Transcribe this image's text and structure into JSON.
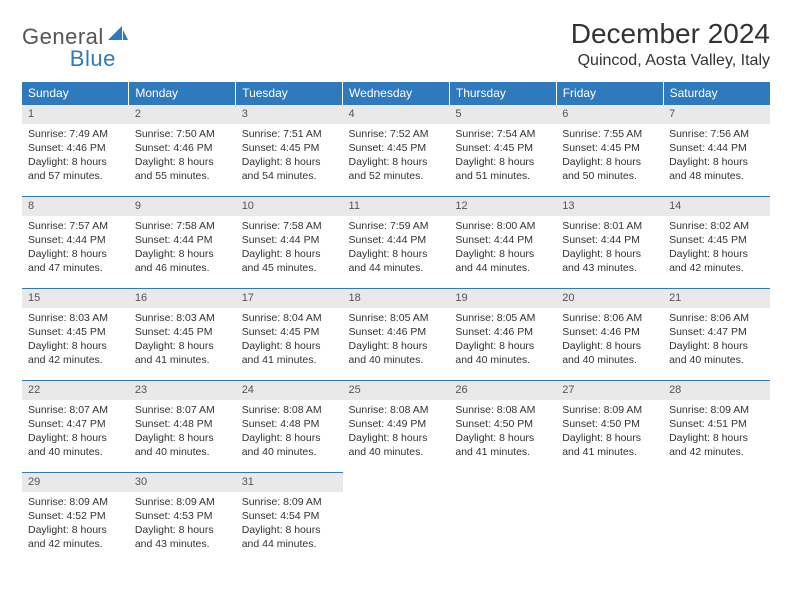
{
  "logo": {
    "general": "General",
    "blue": "Blue",
    "accent_color": "#2f79bd"
  },
  "title": "December 2024",
  "location": "Quincod, Aosta Valley, Italy",
  "day_headers": [
    "Sunday",
    "Monday",
    "Tuesday",
    "Wednesday",
    "Thursday",
    "Friday",
    "Saturday"
  ],
  "colors": {
    "header_bg": "#2f79bd",
    "header_text": "#ffffff",
    "daynum_bg": "#e9e9e9",
    "row_border": "#2f79bd",
    "body_text": "#333333"
  },
  "days": [
    {
      "n": "1",
      "sunrise": "Sunrise: 7:49 AM",
      "sunset": "Sunset: 4:46 PM",
      "daylight": "Daylight: 8 hours and 57 minutes."
    },
    {
      "n": "2",
      "sunrise": "Sunrise: 7:50 AM",
      "sunset": "Sunset: 4:46 PM",
      "daylight": "Daylight: 8 hours and 55 minutes."
    },
    {
      "n": "3",
      "sunrise": "Sunrise: 7:51 AM",
      "sunset": "Sunset: 4:45 PM",
      "daylight": "Daylight: 8 hours and 54 minutes."
    },
    {
      "n": "4",
      "sunrise": "Sunrise: 7:52 AM",
      "sunset": "Sunset: 4:45 PM",
      "daylight": "Daylight: 8 hours and 52 minutes."
    },
    {
      "n": "5",
      "sunrise": "Sunrise: 7:54 AM",
      "sunset": "Sunset: 4:45 PM",
      "daylight": "Daylight: 8 hours and 51 minutes."
    },
    {
      "n": "6",
      "sunrise": "Sunrise: 7:55 AM",
      "sunset": "Sunset: 4:45 PM",
      "daylight": "Daylight: 8 hours and 50 minutes."
    },
    {
      "n": "7",
      "sunrise": "Sunrise: 7:56 AM",
      "sunset": "Sunset: 4:44 PM",
      "daylight": "Daylight: 8 hours and 48 minutes."
    },
    {
      "n": "8",
      "sunrise": "Sunrise: 7:57 AM",
      "sunset": "Sunset: 4:44 PM",
      "daylight": "Daylight: 8 hours and 47 minutes."
    },
    {
      "n": "9",
      "sunrise": "Sunrise: 7:58 AM",
      "sunset": "Sunset: 4:44 PM",
      "daylight": "Daylight: 8 hours and 46 minutes."
    },
    {
      "n": "10",
      "sunrise": "Sunrise: 7:58 AM",
      "sunset": "Sunset: 4:44 PM",
      "daylight": "Daylight: 8 hours and 45 minutes."
    },
    {
      "n": "11",
      "sunrise": "Sunrise: 7:59 AM",
      "sunset": "Sunset: 4:44 PM",
      "daylight": "Daylight: 8 hours and 44 minutes."
    },
    {
      "n": "12",
      "sunrise": "Sunrise: 8:00 AM",
      "sunset": "Sunset: 4:44 PM",
      "daylight": "Daylight: 8 hours and 44 minutes."
    },
    {
      "n": "13",
      "sunrise": "Sunrise: 8:01 AM",
      "sunset": "Sunset: 4:44 PM",
      "daylight": "Daylight: 8 hours and 43 minutes."
    },
    {
      "n": "14",
      "sunrise": "Sunrise: 8:02 AM",
      "sunset": "Sunset: 4:45 PM",
      "daylight": "Daylight: 8 hours and 42 minutes."
    },
    {
      "n": "15",
      "sunrise": "Sunrise: 8:03 AM",
      "sunset": "Sunset: 4:45 PM",
      "daylight": "Daylight: 8 hours and 42 minutes."
    },
    {
      "n": "16",
      "sunrise": "Sunrise: 8:03 AM",
      "sunset": "Sunset: 4:45 PM",
      "daylight": "Daylight: 8 hours and 41 minutes."
    },
    {
      "n": "17",
      "sunrise": "Sunrise: 8:04 AM",
      "sunset": "Sunset: 4:45 PM",
      "daylight": "Daylight: 8 hours and 41 minutes."
    },
    {
      "n": "18",
      "sunrise": "Sunrise: 8:05 AM",
      "sunset": "Sunset: 4:46 PM",
      "daylight": "Daylight: 8 hours and 40 minutes."
    },
    {
      "n": "19",
      "sunrise": "Sunrise: 8:05 AM",
      "sunset": "Sunset: 4:46 PM",
      "daylight": "Daylight: 8 hours and 40 minutes."
    },
    {
      "n": "20",
      "sunrise": "Sunrise: 8:06 AM",
      "sunset": "Sunset: 4:46 PM",
      "daylight": "Daylight: 8 hours and 40 minutes."
    },
    {
      "n": "21",
      "sunrise": "Sunrise: 8:06 AM",
      "sunset": "Sunset: 4:47 PM",
      "daylight": "Daylight: 8 hours and 40 minutes."
    },
    {
      "n": "22",
      "sunrise": "Sunrise: 8:07 AM",
      "sunset": "Sunset: 4:47 PM",
      "daylight": "Daylight: 8 hours and 40 minutes."
    },
    {
      "n": "23",
      "sunrise": "Sunrise: 8:07 AM",
      "sunset": "Sunset: 4:48 PM",
      "daylight": "Daylight: 8 hours and 40 minutes."
    },
    {
      "n": "24",
      "sunrise": "Sunrise: 8:08 AM",
      "sunset": "Sunset: 4:48 PM",
      "daylight": "Daylight: 8 hours and 40 minutes."
    },
    {
      "n": "25",
      "sunrise": "Sunrise: 8:08 AM",
      "sunset": "Sunset: 4:49 PM",
      "daylight": "Daylight: 8 hours and 40 minutes."
    },
    {
      "n": "26",
      "sunrise": "Sunrise: 8:08 AM",
      "sunset": "Sunset: 4:50 PM",
      "daylight": "Daylight: 8 hours and 41 minutes."
    },
    {
      "n": "27",
      "sunrise": "Sunrise: 8:09 AM",
      "sunset": "Sunset: 4:50 PM",
      "daylight": "Daylight: 8 hours and 41 minutes."
    },
    {
      "n": "28",
      "sunrise": "Sunrise: 8:09 AM",
      "sunset": "Sunset: 4:51 PM",
      "daylight": "Daylight: 8 hours and 42 minutes."
    },
    {
      "n": "29",
      "sunrise": "Sunrise: 8:09 AM",
      "sunset": "Sunset: 4:52 PM",
      "daylight": "Daylight: 8 hours and 42 minutes."
    },
    {
      "n": "30",
      "sunrise": "Sunrise: 8:09 AM",
      "sunset": "Sunset: 4:53 PM",
      "daylight": "Daylight: 8 hours and 43 minutes."
    },
    {
      "n": "31",
      "sunrise": "Sunrise: 8:09 AM",
      "sunset": "Sunset: 4:54 PM",
      "daylight": "Daylight: 8 hours and 44 minutes."
    }
  ]
}
